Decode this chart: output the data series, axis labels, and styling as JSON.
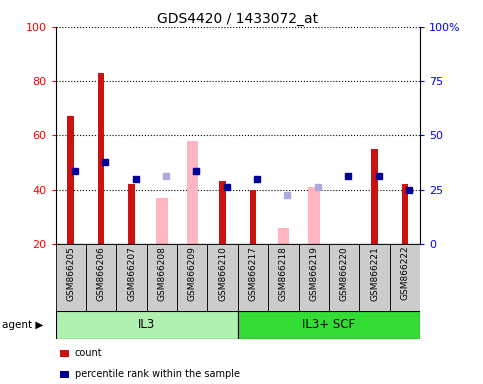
{
  "title": "GDS4420 / 1433072_at",
  "samples": [
    "GSM866205",
    "GSM866206",
    "GSM866207",
    "GSM866208",
    "GSM866209",
    "GSM866210",
    "GSM866217",
    "GSM866218",
    "GSM866219",
    "GSM866220",
    "GSM866221",
    "GSM866222"
  ],
  "groups": [
    {
      "label": "IL3",
      "start": 0,
      "end": 6,
      "color": "#b0f0b0"
    },
    {
      "label": "IL3+ SCF",
      "start": 6,
      "end": 12,
      "color": "#33dd33"
    }
  ],
  "count": [
    67,
    83,
    42,
    null,
    null,
    43,
    40,
    null,
    null,
    null,
    55,
    42
  ],
  "percentile_rank": [
    47,
    50,
    44,
    null,
    47,
    41,
    44,
    null,
    null,
    45,
    45,
    40
  ],
  "value_absent": [
    null,
    null,
    null,
    37,
    58,
    null,
    null,
    26,
    41,
    null,
    null,
    null
  ],
  "rank_absent": [
    null,
    null,
    null,
    45,
    47,
    null,
    null,
    38,
    41,
    null,
    null,
    null
  ],
  "count_color": "#cc1111",
  "percentile_color": "#000099",
  "value_absent_color": "#ffb6c1",
  "rank_absent_color": "#aaaadd",
  "ylim_left": [
    20,
    100
  ],
  "ylim_right": [
    0,
    100
  ],
  "yticks_left": [
    20,
    40,
    60,
    80,
    100
  ],
  "yticks_right": [
    0,
    25,
    50,
    75,
    100
  ],
  "yticklabels_right": [
    "0",
    "25",
    "50",
    "75",
    "100%"
  ]
}
